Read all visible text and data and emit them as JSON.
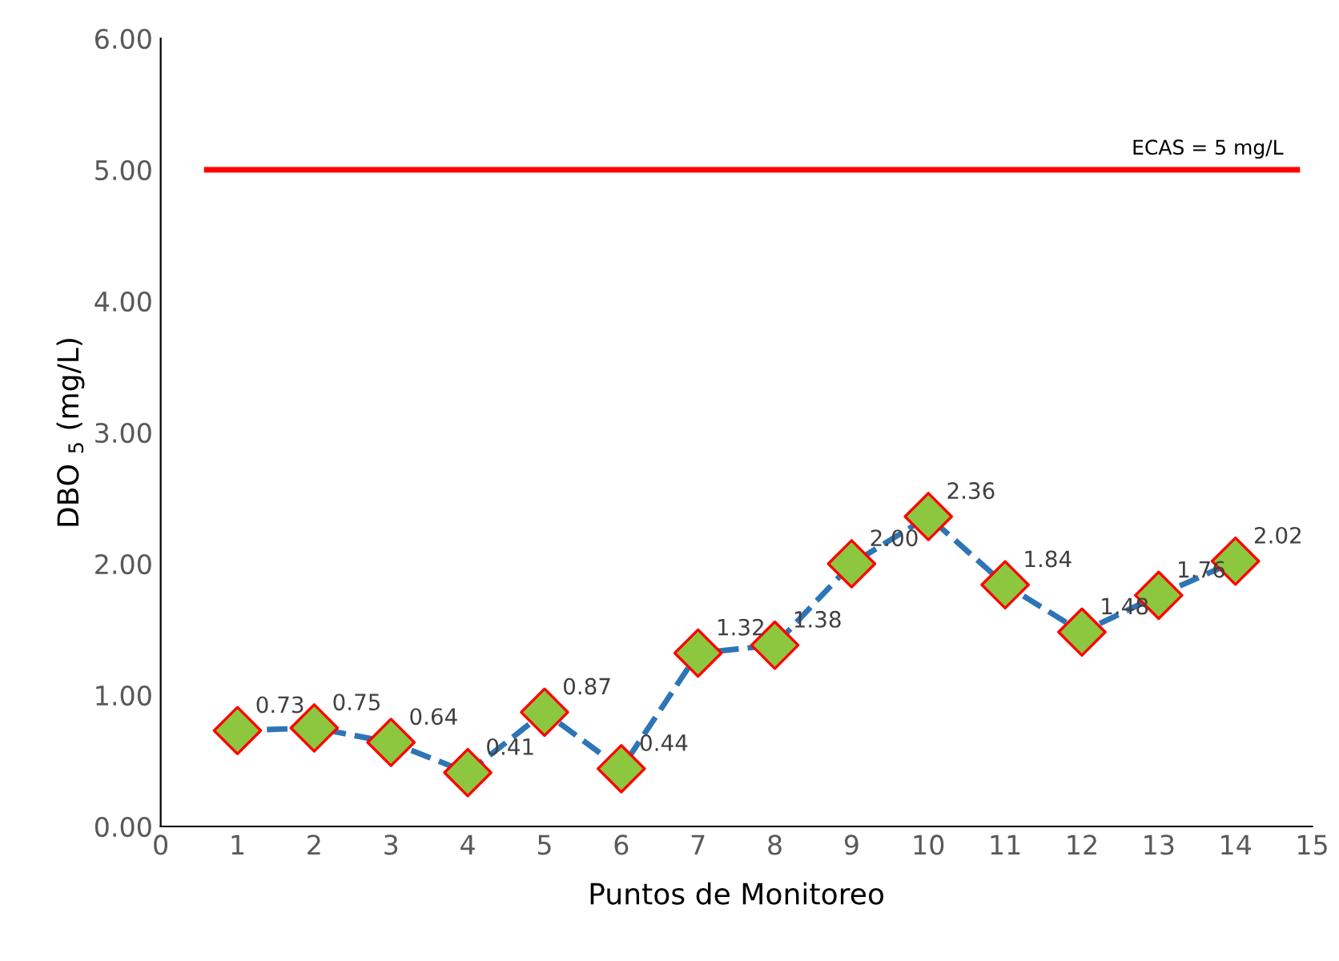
{
  "chart_data": {
    "type": "line",
    "xlabel": "Puntos de Monitoreo",
    "ylabel": "DBO $_{5}$ (mg/L)",
    "x": [
      1,
      2,
      3,
      4,
      5,
      6,
      7,
      8,
      9,
      10,
      11,
      12,
      13,
      14
    ],
    "series": [
      {
        "color": "#2e75b6",
        "values": [
          0.73,
          0.75,
          0.64,
          0.41,
          0.87,
          0.44,
          1.32,
          1.38,
          2.0,
          2.36,
          1.84,
          1.48,
          1.76,
          2.02
        ],
        "value_labels": [
          "0.73",
          "0.75",
          "0.64",
          "0.41",
          "0.87",
          "0.44",
          "1.32",
          "1.38",
          "2.00",
          "2.36",
          "1.84",
          "1.48",
          "1.76",
          "2.02"
        ]
      }
    ],
    "xlim": [
      0,
      15
    ],
    "xticks": [
      0,
      1,
      2,
      3,
      4,
      5,
      6,
      7,
      8,
      9,
      10,
      11,
      12,
      13,
      14,
      15
    ],
    "ylim": [
      0,
      6
    ],
    "yticks": [
      {
        "value": 0,
        "label": "0.00"
      },
      {
        "value": 1,
        "label": "1.00"
      },
      {
        "value": 2,
        "label": "2.00"
      },
      {
        "value": 3,
        "label": "3.00"
      },
      {
        "value": 4,
        "label": "4.00"
      },
      {
        "value": 5,
        "label": "5.00"
      },
      {
        "value": 6,
        "label": "6.00"
      }
    ],
    "ref_lines": [
      {
        "axis": "y",
        "value": 5,
        "label": "ECAS = 5 mg/L",
        "color": "#ff0000"
      }
    ],
    "marker": "diamond",
    "line_style": "dashed",
    "grid": false,
    "legend": false
  }
}
